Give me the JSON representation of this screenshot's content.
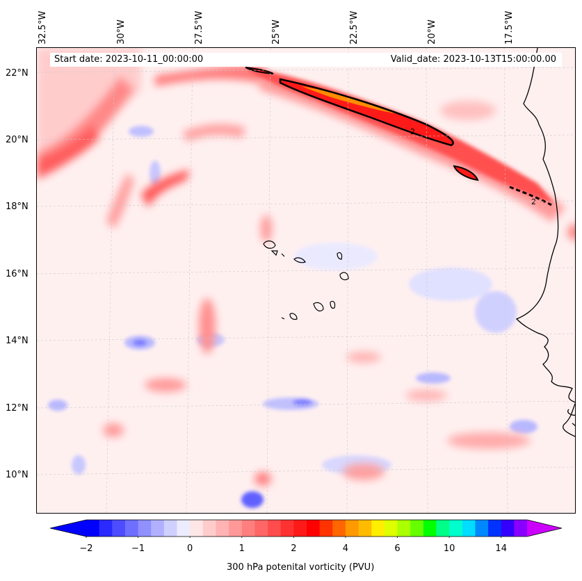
{
  "map": {
    "title_start": "Start date: 2023-10-11_00:00:00",
    "title_valid": "Valid_date: 2023-10-13T15:00:00.00",
    "lon_labels": [
      "32.5°W",
      "30°W",
      "27.5°W",
      "25°W",
      "22.5°W",
      "20°W",
      "17.5°W"
    ],
    "lat_labels": [
      "22°N",
      "20°N",
      "18°N",
      "16°N",
      "14°N",
      "12°N",
      "10°N"
    ],
    "contour_label": "2"
  },
  "colorbar": {
    "label": "300 hPa potenital vorticity (PVU)",
    "ticks": [
      "−2",
      "−1",
      "0",
      "1",
      "2",
      "4",
      "6",
      "10",
      "14"
    ],
    "colors": [
      "#0000ff",
      "#2a2aff",
      "#4d4dff",
      "#6f6fff",
      "#9090ff",
      "#b0b0ff",
      "#d0d0ff",
      "#ececff",
      "#ffe6e6",
      "#ffcccc",
      "#ffb3b3",
      "#ff9999",
      "#ff7f7f",
      "#ff6666",
      "#ff4c4c",
      "#ff3232",
      "#ff1a1a",
      "#ff0000",
      "#ff3300",
      "#ff6600",
      "#ff9900",
      "#ffbb00",
      "#ffee00",
      "#ddff00",
      "#aaff00",
      "#66ff00",
      "#00ff00",
      "#00ff88",
      "#00ffcc",
      "#00ddff",
      "#0088ff",
      "#0033ff",
      "#3300ff",
      "#8800ff"
    ],
    "under_color": "#0000ff",
    "over_color": "#cc00ff"
  }
}
